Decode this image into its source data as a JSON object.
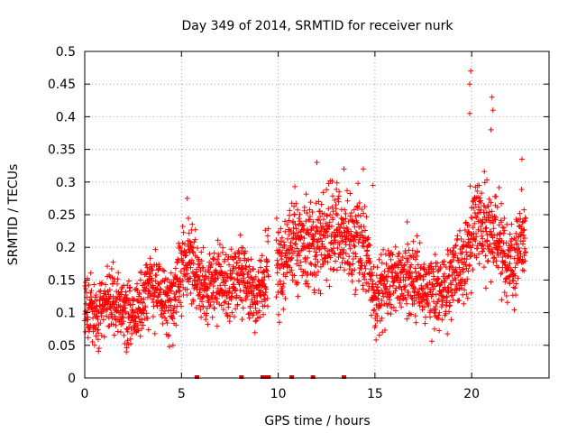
{
  "chart_data": {
    "type": "scatter",
    "title": "Day 349 of 2014, SRMTID for receiver nurk",
    "xlabel": "GPS time / hours",
    "ylabel": "SRMTID / TECUs",
    "xlim": [
      0,
      24
    ],
    "ylim": [
      0,
      0.5
    ],
    "grid": true,
    "x_ticks": [
      0,
      5,
      10,
      15,
      20
    ],
    "x_tick_labels": [
      "0",
      "5",
      "10",
      "15",
      "20"
    ],
    "y_ticks": [
      0,
      0.05,
      0.1,
      0.15,
      0.2,
      0.25,
      0.3,
      0.35,
      0.4,
      0.45,
      0.5
    ],
    "y_tick_labels": [
      "0",
      "0.05",
      "0.1",
      "0.15",
      "0.2",
      "0.25",
      "0.3",
      "0.35",
      "0.4",
      "0.45",
      "0.5"
    ],
    "marker": "+",
    "series_color": "#ff0000",
    "trend": [
      {
        "x": 0.0,
        "y": 0.11
      },
      {
        "x": 0.5,
        "y": 0.1
      },
      {
        "x": 1.0,
        "y": 0.11
      },
      {
        "x": 1.5,
        "y": 0.12
      },
      {
        "x": 2.0,
        "y": 0.1
      },
      {
        "x": 2.5,
        "y": 0.09
      },
      {
        "x": 3.0,
        "y": 0.12
      },
      {
        "x": 3.5,
        "y": 0.15
      },
      {
        "x": 4.0,
        "y": 0.13
      },
      {
        "x": 4.5,
        "y": 0.11
      },
      {
        "x": 5.0,
        "y": 0.17
      },
      {
        "x": 5.5,
        "y": 0.18
      },
      {
        "x": 6.0,
        "y": 0.15
      },
      {
        "x": 6.5,
        "y": 0.14
      },
      {
        "x": 7.0,
        "y": 0.16
      },
      {
        "x": 7.5,
        "y": 0.14
      },
      {
        "x": 8.0,
        "y": 0.16
      },
      {
        "x": 8.5,
        "y": 0.14
      },
      {
        "x": 9.0,
        "y": 0.13
      },
      {
        "x": 9.5,
        "y": 0.17
      },
      {
        "x": 10.0,
        "y": 0.17
      },
      {
        "x": 11.0,
        "y": 0.21
      },
      {
        "x": 11.5,
        "y": 0.2
      },
      {
        "x": 12.0,
        "y": 0.21
      },
      {
        "x": 12.5,
        "y": 0.22
      },
      {
        "x": 13.0,
        "y": 0.22
      },
      {
        "x": 13.5,
        "y": 0.2
      },
      {
        "x": 14.0,
        "y": 0.21
      },
      {
        "x": 14.5,
        "y": 0.2
      },
      {
        "x": 15.0,
        "y": 0.11
      },
      {
        "x": 15.5,
        "y": 0.14
      },
      {
        "x": 16.0,
        "y": 0.16
      },
      {
        "x": 16.5,
        "y": 0.16
      },
      {
        "x": 17.0,
        "y": 0.15
      },
      {
        "x": 17.5,
        "y": 0.14
      },
      {
        "x": 18.0,
        "y": 0.14
      },
      {
        "x": 18.5,
        "y": 0.13
      },
      {
        "x": 19.0,
        "y": 0.15
      },
      {
        "x": 19.5,
        "y": 0.17
      },
      {
        "x": 20.0,
        "y": 0.21
      },
      {
        "x": 20.5,
        "y": 0.24
      },
      {
        "x": 21.0,
        "y": 0.23
      },
      {
        "x": 21.5,
        "y": 0.2
      },
      {
        "x": 22.0,
        "y": 0.17
      },
      {
        "x": 22.5,
        "y": 0.21
      }
    ],
    "peaks": [
      {
        "x": 19.95,
        "y": 0.47
      },
      {
        "x": 19.9,
        "y": 0.45
      },
      {
        "x": 19.9,
        "y": 0.405
      },
      {
        "x": 21.05,
        "y": 0.43
      },
      {
        "x": 21.1,
        "y": 0.41
      },
      {
        "x": 21.0,
        "y": 0.38
      },
      {
        "x": 12.0,
        "y": 0.33
      },
      {
        "x": 13.4,
        "y": 0.32
      },
      {
        "x": 14.4,
        "y": 0.32
      },
      {
        "x": 22.6,
        "y": 0.335
      },
      {
        "x": 5.3,
        "y": 0.275
      },
      {
        "x": 14.9,
        "y": 0.295
      }
    ],
    "segments": [
      {
        "start": 0.0,
        "end": 9.5
      },
      {
        "start": 9.9,
        "end": 22.8
      }
    ],
    "gap_markers": [
      5.8,
      8.1,
      9.2,
      9.35,
      9.5,
      10.7,
      11.8,
      13.4
    ]
  }
}
